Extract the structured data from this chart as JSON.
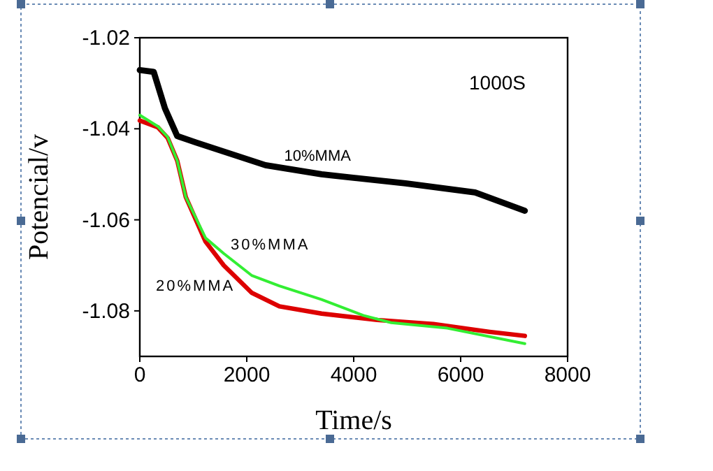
{
  "chart_data": {
    "type": "line",
    "xlabel": "Time/s",
    "ylabel": "Potencial/v",
    "annotations": [
      "1000S"
    ],
    "xlim": [
      0,
      8000
    ],
    "xticks": [
      0,
      2000,
      4000,
      6000,
      8000
    ],
    "ylim": [
      -1.09,
      -1.02
    ],
    "yticks": [
      -1.02,
      -1.04,
      -1.06,
      -1.08
    ],
    "grid": false,
    "marker": "none",
    "line_style": "solid",
    "series": [
      {
        "name": "10%MMA",
        "color": "#000000",
        "x": [
          0,
          260,
          470,
          700,
          1050,
          1570,
          2350,
          3400,
          4970,
          6270,
          7200
        ],
        "values": [
          -1.0271,
          -1.0275,
          -1.0355,
          -1.0416,
          -1.043,
          -1.045,
          -1.048,
          -1.05,
          -1.052,
          -1.054,
          -1.058
        ]
      },
      {
        "name": "20%MMA",
        "color": "#dd0000",
        "x": [
          0,
          340,
          520,
          700,
          860,
          1230,
          1570,
          2090,
          2610,
          3400,
          4440,
          5490,
          6540,
          7200
        ],
        "values": [
          -1.0382,
          -1.0397,
          -1.042,
          -1.047,
          -1.055,
          -1.0648,
          -1.07,
          -1.076,
          -1.079,
          -1.0806,
          -1.082,
          -1.0829,
          -1.0846,
          -1.0855
        ]
      },
      {
        "name": "30%MMA",
        "color": "#33ee33",
        "x": [
          0,
          340,
          520,
          700,
          860,
          1230,
          1570,
          2090,
          2610,
          3400,
          4180,
          4700,
          5750,
          7200
        ],
        "values": [
          -1.037,
          -1.0395,
          -1.0418,
          -1.047,
          -1.055,
          -1.064,
          -1.0674,
          -1.0722,
          -1.0745,
          -1.0775,
          -1.081,
          -1.0826,
          -1.0838,
          -1.0872
        ]
      }
    ]
  }
}
